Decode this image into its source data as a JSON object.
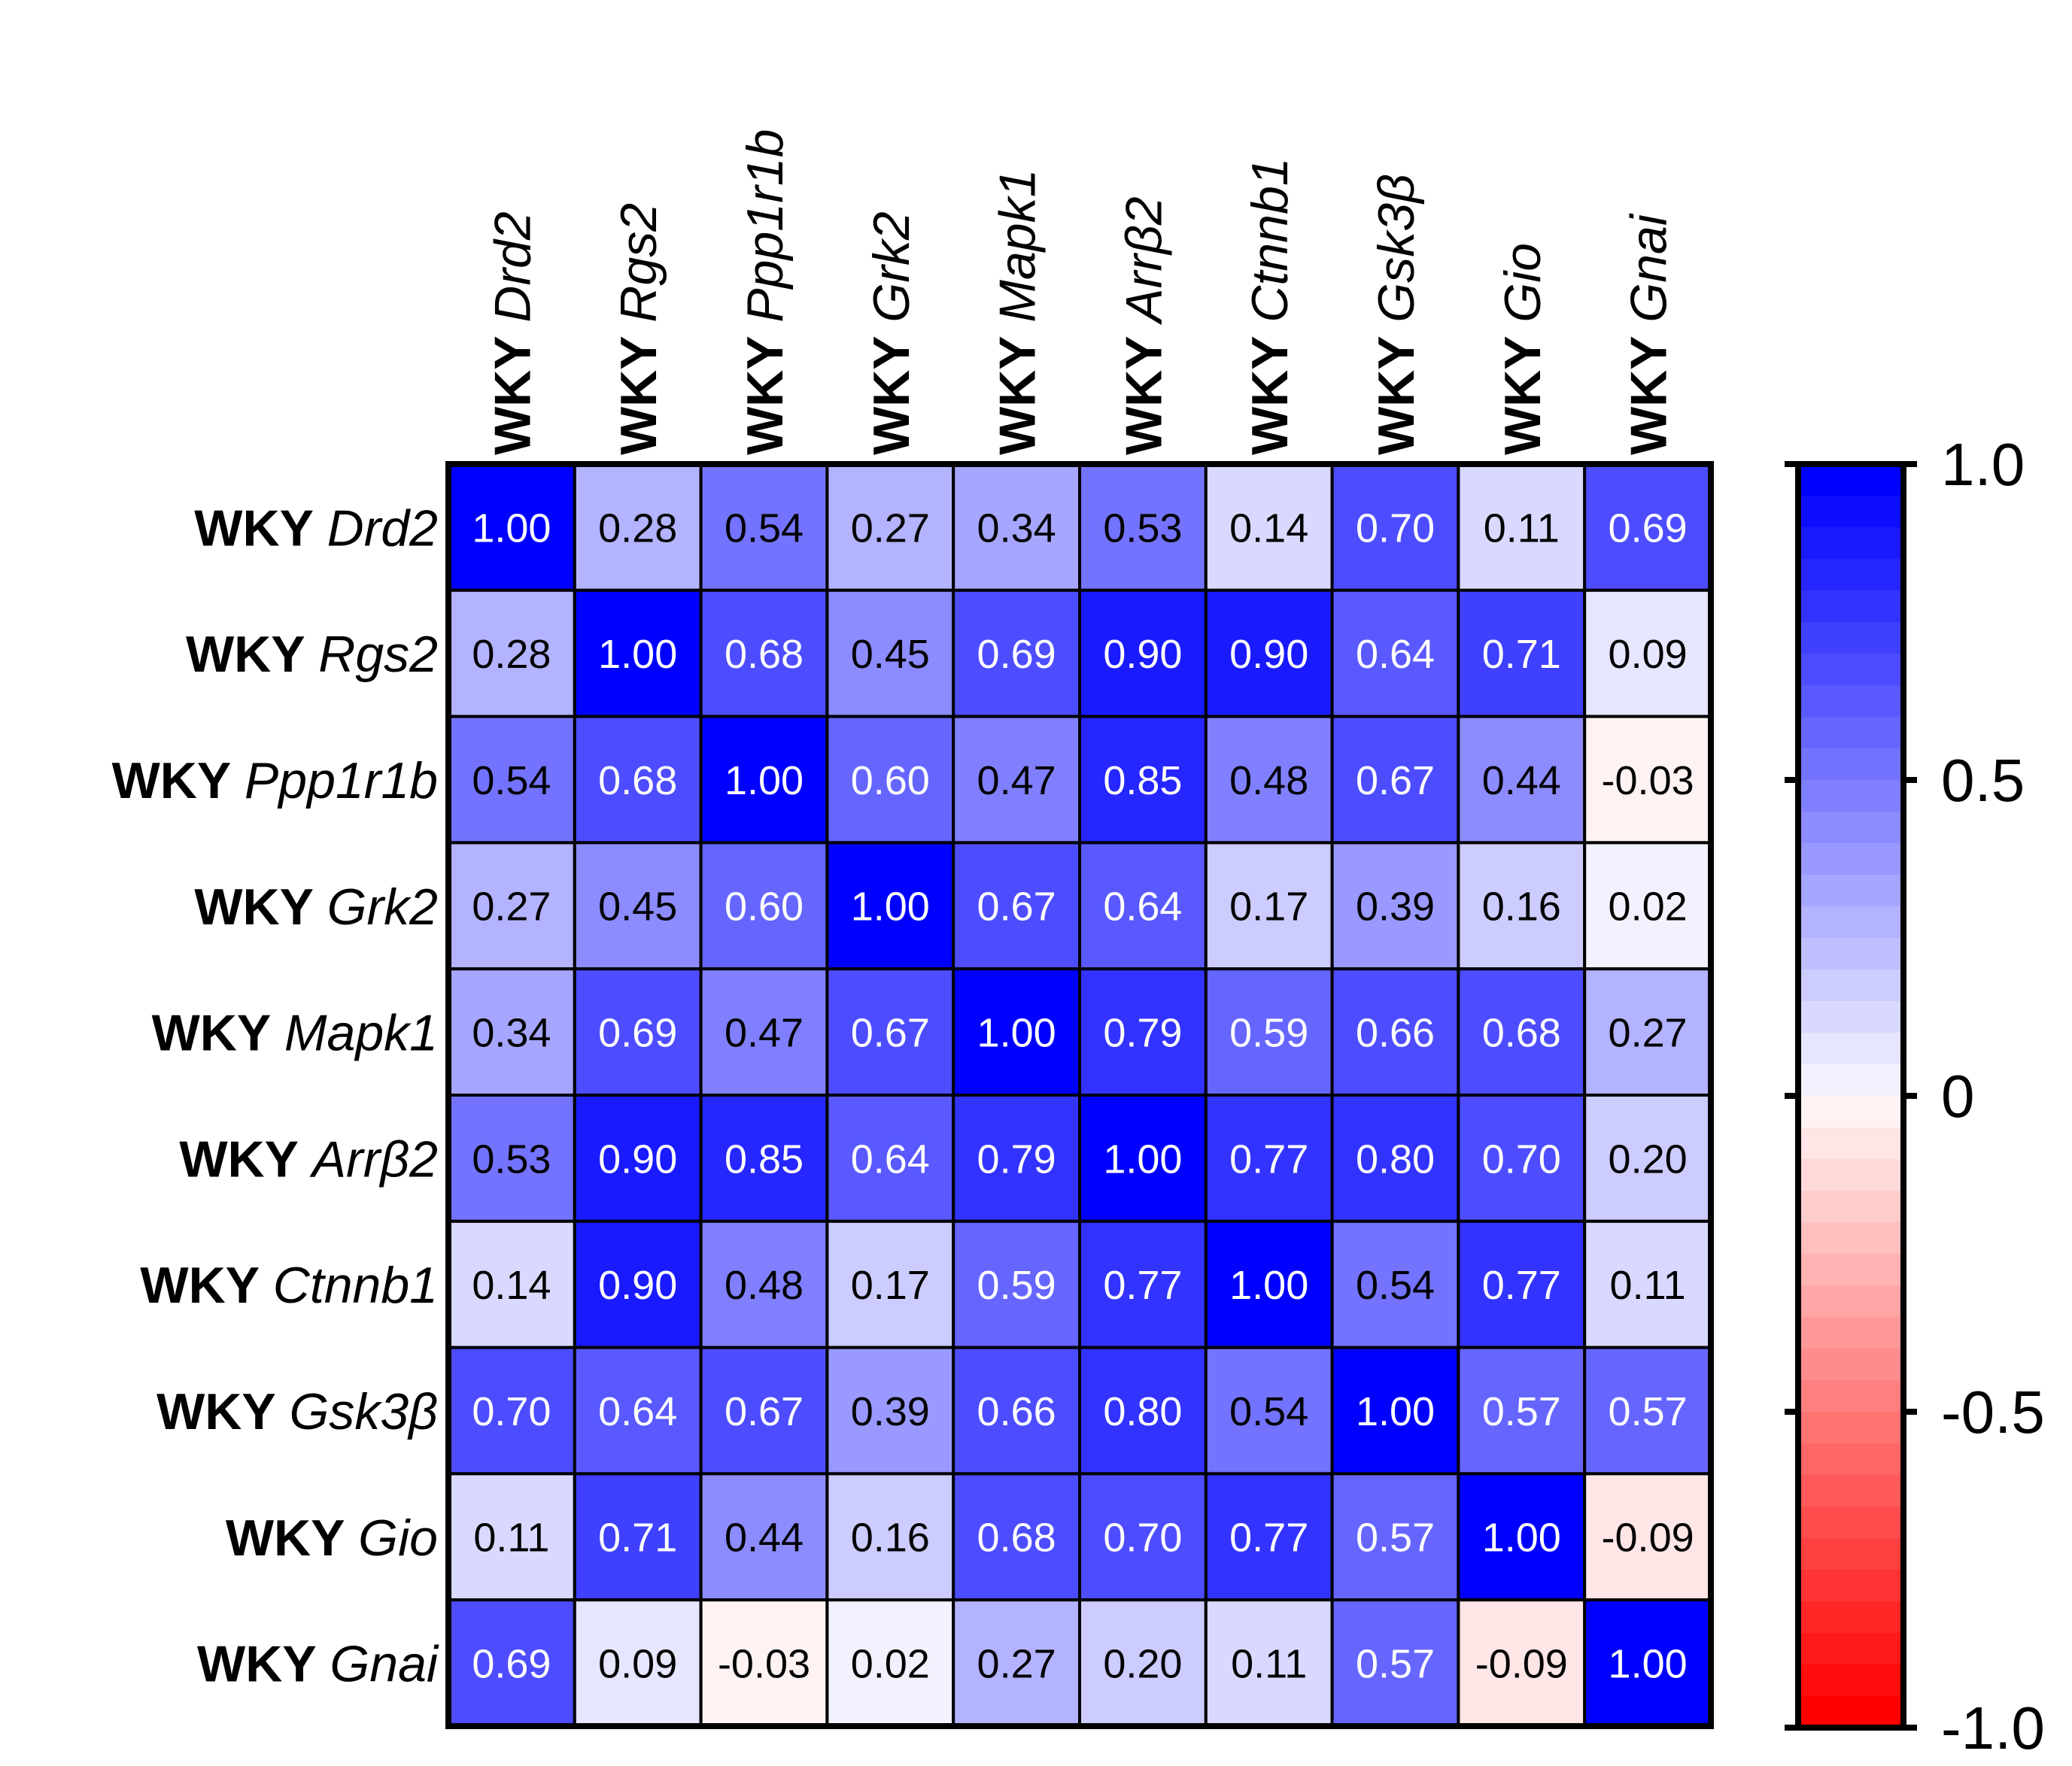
{
  "chart_data": {
    "type": "heatmap",
    "title": "",
    "row_prefix": "WKY",
    "genes": [
      "Drd2",
      "Rgs2",
      "Ppp1r1b",
      "Grk2",
      "Mapk1",
      "Arrβ2",
      "Ctnnb1",
      "Gsk3β",
      "Gio",
      "Gnai"
    ],
    "matrix": [
      [
        1.0,
        0.28,
        0.54,
        0.27,
        0.34,
        0.53,
        0.14,
        0.7,
        0.11,
        0.69
      ],
      [
        0.28,
        1.0,
        0.68,
        0.45,
        0.69,
        0.9,
        0.9,
        0.64,
        0.71,
        0.09
      ],
      [
        0.54,
        0.68,
        1.0,
        0.6,
        0.47,
        0.85,
        0.48,
        0.67,
        0.44,
        -0.03
      ],
      [
        0.27,
        0.45,
        0.6,
        1.0,
        0.67,
        0.64,
        0.17,
        0.39,
        0.16,
        0.02
      ],
      [
        0.34,
        0.69,
        0.47,
        0.67,
        1.0,
        0.79,
        0.59,
        0.66,
        0.68,
        0.27
      ],
      [
        0.53,
        0.9,
        0.85,
        0.64,
        0.79,
        1.0,
        0.77,
        0.8,
        0.7,
        0.2
      ],
      [
        0.14,
        0.9,
        0.48,
        0.17,
        0.59,
        0.77,
        1.0,
        0.54,
        0.77,
        0.11
      ],
      [
        0.7,
        0.64,
        0.67,
        0.39,
        0.66,
        0.8,
        0.54,
        1.0,
        0.57,
        0.57
      ],
      [
        0.11,
        0.71,
        0.44,
        0.16,
        0.68,
        0.7,
        0.77,
        0.57,
        1.0,
        -0.09
      ],
      [
        0.69,
        0.09,
        -0.03,
        0.02,
        0.27,
        0.2,
        0.11,
        0.57,
        -0.09,
        1.0
      ]
    ],
    "color_scale": {
      "min": -1.0,
      "max": 1.0,
      "steps": 40,
      "negative_color": "#ff0000",
      "zero_color": "#ffffff",
      "positive_color": "#0000ff",
      "ticks": [
        {
          "value": 1.0,
          "label": "1.0"
        },
        {
          "value": 0.5,
          "label": "0.5"
        },
        {
          "value": 0,
          "label": "0"
        },
        {
          "value": -0.5,
          "label": "-0.5"
        },
        {
          "value": -1.0,
          "label": "-1.0"
        }
      ]
    }
  }
}
